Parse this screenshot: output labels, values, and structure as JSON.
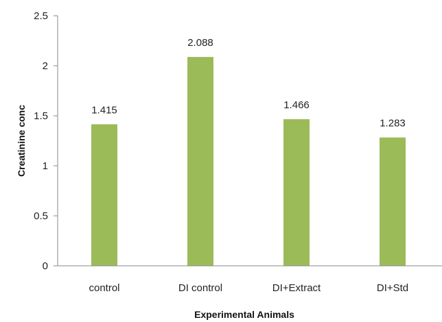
{
  "chart_data": {
    "type": "bar",
    "categories": [
      "control",
      "DI control",
      "DI+Extract",
      "DI+Std"
    ],
    "values": [
      1.415,
      2.088,
      1.466,
      1.283
    ],
    "data_labels": [
      "1.415",
      "2.088",
      "1.466",
      "1.283"
    ],
    "xlabel": "Experimental Animals",
    "ylabel": "Creatinine conc",
    "ylim": [
      0,
      2.5
    ],
    "yticks": [
      0,
      0.5,
      1,
      1.5,
      2,
      2.5
    ],
    "ytick_labels": [
      "0",
      "0.5",
      "1",
      "1.5",
      "2",
      "2.5"
    ],
    "grid": false,
    "legend": "none",
    "bar_color": "#9BBB59"
  }
}
